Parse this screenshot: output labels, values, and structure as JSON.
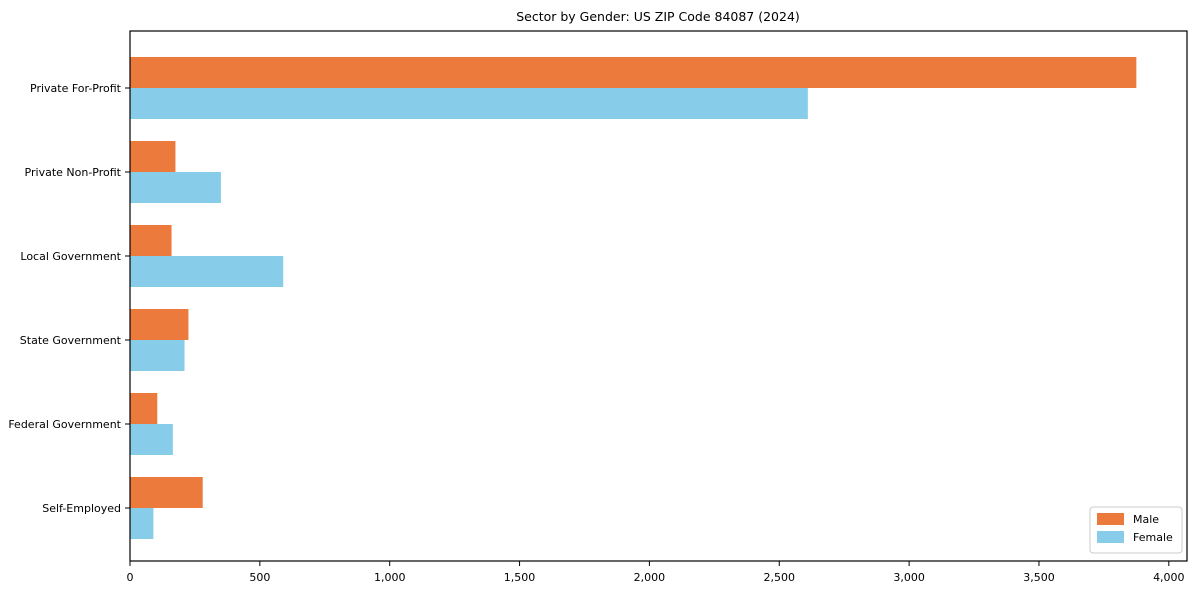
{
  "title": "Sector by Gender: US ZIP Code 84087 (2024)",
  "chart_data": {
    "type": "bar",
    "orientation": "horizontal",
    "title": "Sector by Gender: US ZIP Code 84087 (2024)",
    "xlabel": "",
    "ylabel": "",
    "categories": [
      "Private For-Profit",
      "Private Non-Profit",
      "Local Government",
      "State Government",
      "Federal Government",
      "Self-Employed"
    ],
    "series": [
      {
        "name": "Male",
        "color": "#EB7A3C",
        "values": [
          3875,
          175,
          160,
          225,
          105,
          280
        ]
      },
      {
        "name": "Female",
        "color": "#87CCE8",
        "values": [
          2610,
          350,
          590,
          210,
          165,
          90
        ]
      }
    ],
    "xlim": [
      0,
      4070
    ],
    "xticks": [
      0,
      500,
      1000,
      1500,
      2000,
      2500,
      3000,
      3500,
      4000
    ],
    "xtick_labels": [
      "0",
      "500",
      "1,000",
      "1,500",
      "2,000",
      "2,500",
      "3,000",
      "3,500",
      "4,000"
    ],
    "grid": false,
    "legend": {
      "position": "lower right",
      "entries": [
        "Male",
        "Female"
      ]
    }
  },
  "colors": {
    "male": "#EB7A3C",
    "female": "#87CCE8",
    "axis": "#000000",
    "background": "#FFFFFF",
    "legend_border": "#CCCCCC"
  }
}
